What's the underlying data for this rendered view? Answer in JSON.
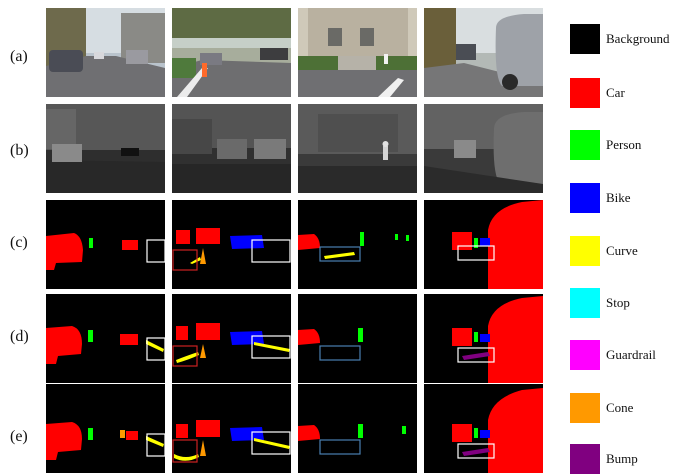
{
  "rows": [
    {
      "label": "(a)"
    },
    {
      "label": "(b)"
    },
    {
      "label": "(c)"
    },
    {
      "label": "(d)"
    },
    {
      "label": "(e)"
    }
  ],
  "legend": [
    {
      "label": "Background",
      "color": "#000000"
    },
    {
      "label": "Car",
      "color": "#ff0000"
    },
    {
      "label": "Person",
      "color": "#00ff00"
    },
    {
      "label": "Bike",
      "color": "#0000ff"
    },
    {
      "label": "Curve",
      "color": "#ffff00"
    },
    {
      "label": "Stop",
      "color": "#00ffff"
    },
    {
      "label": "Guardrail",
      "color": "#ff00ff"
    },
    {
      "label": "Cone",
      "color": "#ff9900"
    },
    {
      "label": "Bump",
      "color": "#800080"
    }
  ]
}
